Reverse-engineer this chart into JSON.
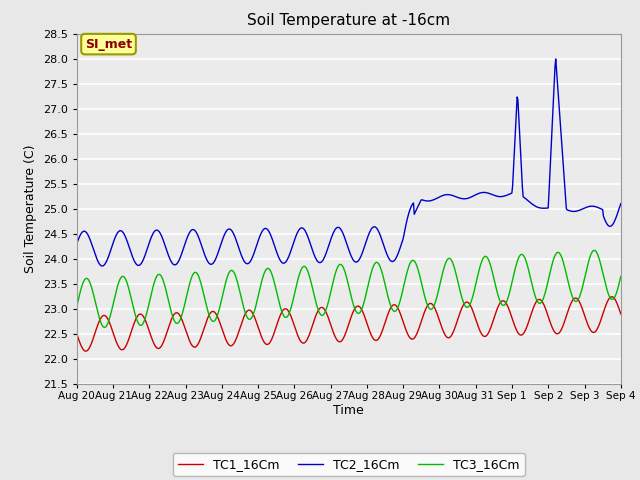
{
  "title": "Soil Temperature at -16cm",
  "xlabel": "Time",
  "ylabel": "Soil Temperature (C)",
  "ylim": [
    21.5,
    28.5
  ],
  "bg_color": "#e8e8e8",
  "plot_bg_color": "#ebebeb",
  "grid_color": "white",
  "legend_label": "SI_met",
  "legend_text_color": "#8b0000",
  "legend_box_color": "#ffff99",
  "line_colors": {
    "TC1": "#cc0000",
    "TC2": "#0000cc",
    "TC3": "#00bb00"
  },
  "tick_labels": [
    "Aug 20",
    "Aug 21",
    "Aug 22",
    "Aug 23",
    "Aug 24",
    "Aug 25",
    "Aug 26",
    "Aug 27",
    "Aug 28",
    "Aug 29",
    "Aug 30",
    "Aug 31",
    "Sep 1",
    "Sep 2",
    "Sep 3",
    "Sep 4"
  ],
  "n_days": 15,
  "yticks": [
    21.5,
    22.0,
    22.5,
    23.0,
    23.5,
    24.0,
    24.5,
    25.0,
    25.5,
    26.0,
    26.5,
    27.0,
    27.5,
    28.0,
    28.5
  ]
}
